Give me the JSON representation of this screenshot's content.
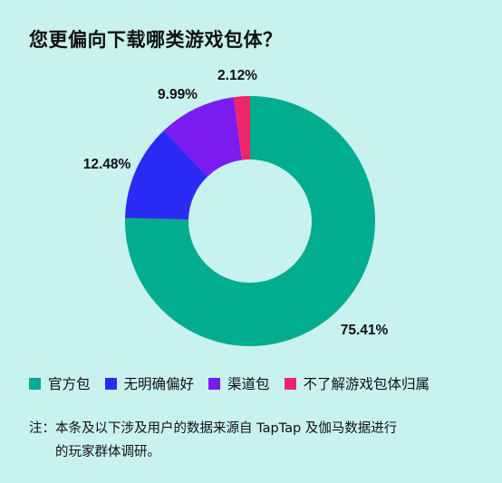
{
  "title": "您更偏向下载哪类游戏包体？",
  "chart_data": {
    "type": "pie",
    "variant": "donut",
    "title": "您更偏向下载哪类游戏包体？",
    "categories": [
      "官方包",
      "无明确偏好",
      "渠道包",
      "不了解游戏包体归属"
    ],
    "values": [
      75.41,
      12.48,
      9.99,
      2.12
    ],
    "labels": [
      "75.41%",
      "12.48%",
      "9.99%",
      "2.12%"
    ],
    "colors": [
      "#00ad8e",
      "#2b2bf5",
      "#7a1cf0",
      "#ee2567"
    ],
    "legend_position": "bottom-left"
  },
  "legend": [
    {
      "label": "官方包",
      "color": "#00ad8e"
    },
    {
      "label": "无明确偏好",
      "color": "#2b2bf5"
    },
    {
      "label": "渠道包",
      "color": "#7a1cf0"
    },
    {
      "label": "不了解游戏包体归属",
      "color": "#ee2567"
    }
  ],
  "note": {
    "prefix": "注：",
    "line1": "本条及以下涉及用户的数据来源自 TapTap 及伽马数据进行",
    "line2": "的玩家群体调研。"
  }
}
